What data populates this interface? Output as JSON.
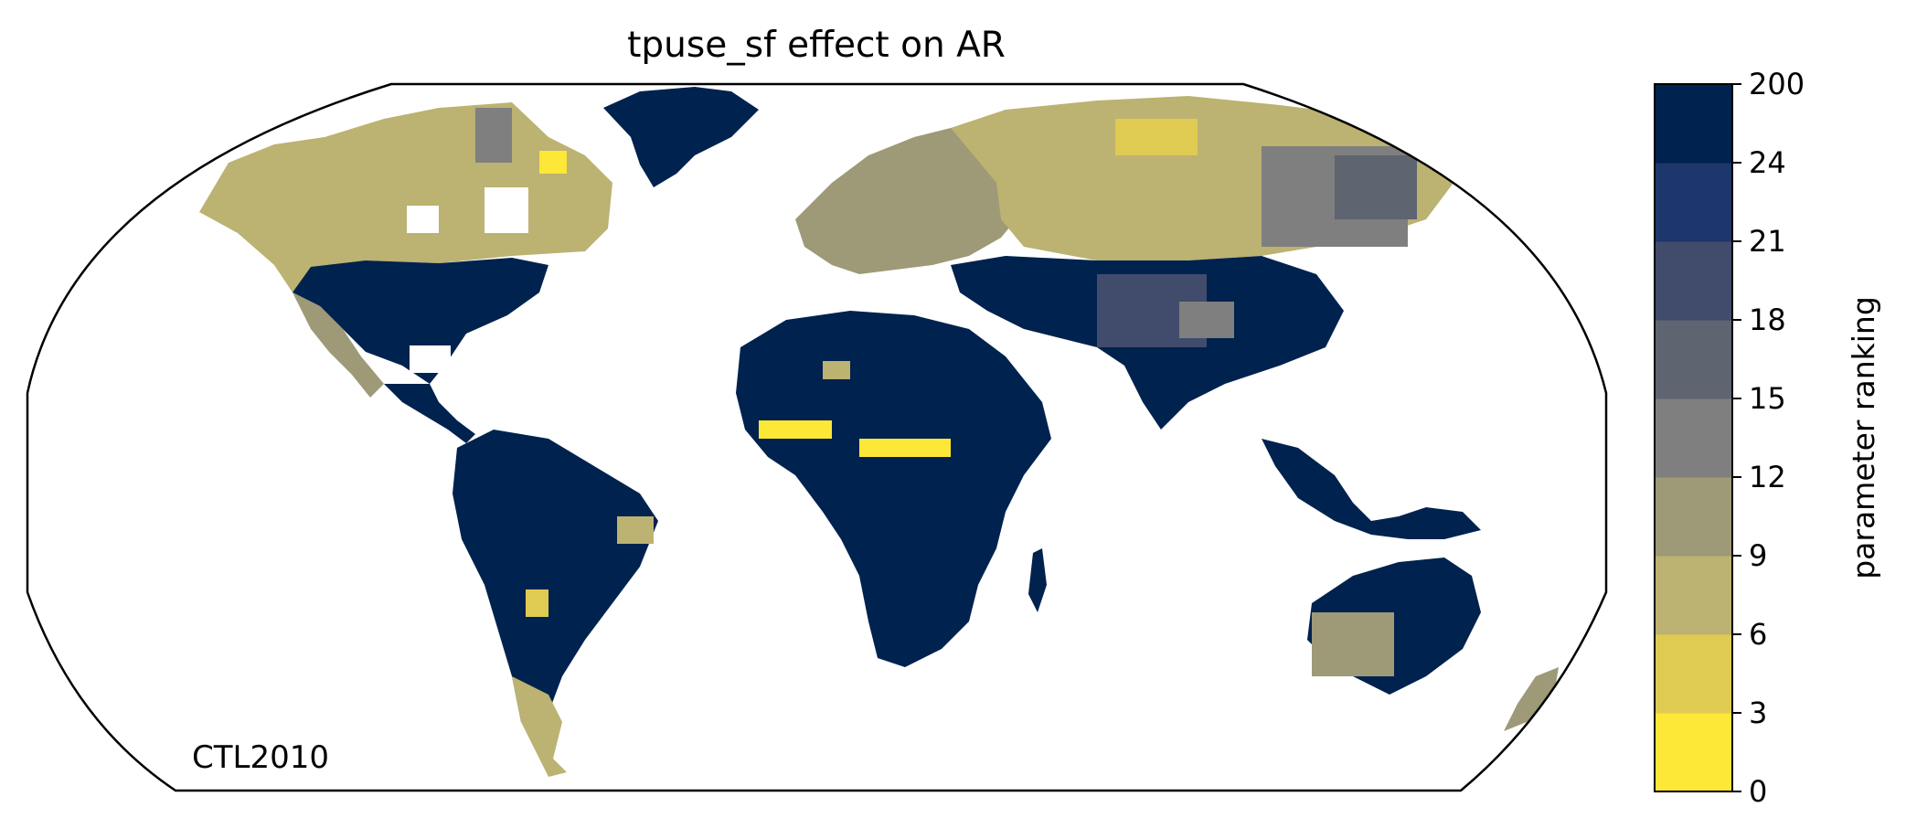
{
  "title": "tpuse_sf effect on AR",
  "panel_label": "CTL2010",
  "map": {
    "projection": "Robinson (global)",
    "land_outline_color": "#808080",
    "ocean_color": "#ffffff",
    "frame_color": "#000000"
  },
  "colorbar": {
    "label": "parameter ranking",
    "bounds": [
      "0",
      "3",
      "6",
      "9",
      "12",
      "15",
      "18",
      "21",
      "24",
      "200"
    ],
    "colors": [
      "#fde737",
      "#e0cb52",
      "#bcb271",
      "#9e9977",
      "#7f7f7f",
      "#5e6470",
      "#414b6b",
      "#1d366b",
      "#00224e"
    ]
  }
}
